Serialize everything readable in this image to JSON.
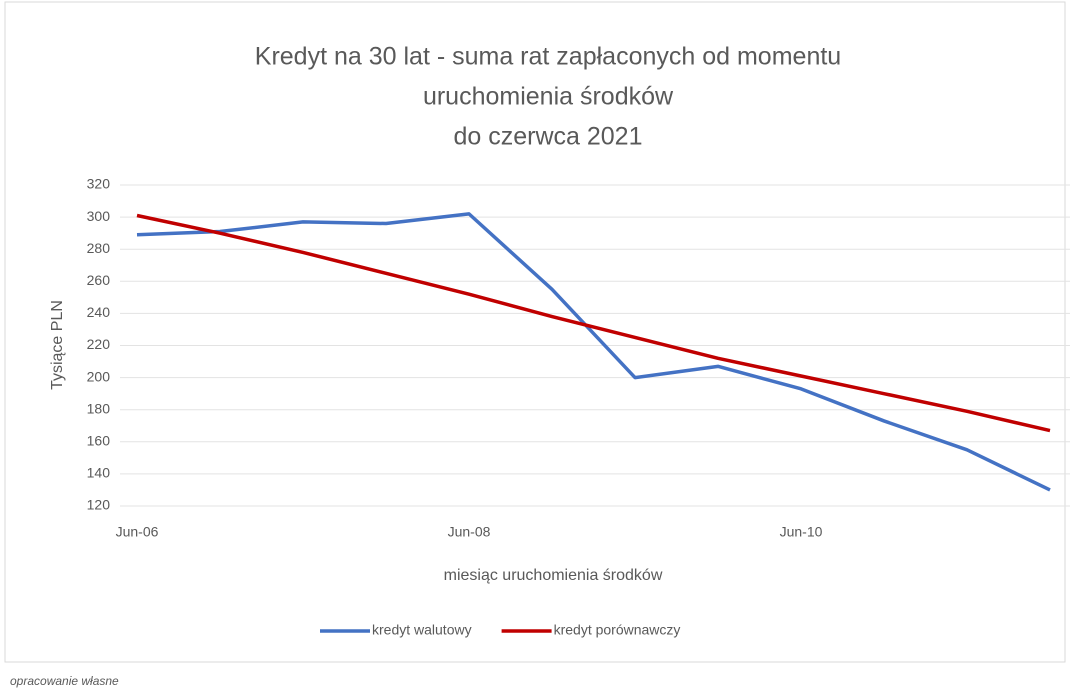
{
  "chart_data": {
    "type": "line",
    "title": [
      "Kredyt na 30 lat - suma rat zapłaconych od momentu",
      "uruchomienia środków",
      "do czerwca 2021"
    ],
    "xlabel": "miesiąc uruchomienia środków",
    "ylabel": "Tysiące PLN",
    "categories": [
      "Jun-06",
      null,
      null,
      null,
      "Jun-08",
      null,
      null,
      null,
      "Jun-10",
      null,
      null,
      null
    ],
    "series": [
      {
        "name": "kredyt walutowy",
        "color": "#4472c4",
        "values": [
          289,
          291,
          297,
          296,
          302,
          255,
          200,
          207,
          193,
          173,
          155,
          130
        ]
      },
      {
        "name": "kredyt porównawczy",
        "color": "#c00000",
        "values": [
          301,
          290,
          278,
          265,
          252,
          238,
          225,
          212,
          201,
          190,
          179,
          167
        ]
      }
    ],
    "ylim": [
      120,
      320
    ],
    "yticks": [
      120,
      140,
      160,
      180,
      200,
      220,
      240,
      260,
      280,
      300,
      320
    ],
    "grid": true,
    "legend": "bottom",
    "source": "opracowanie własne"
  }
}
